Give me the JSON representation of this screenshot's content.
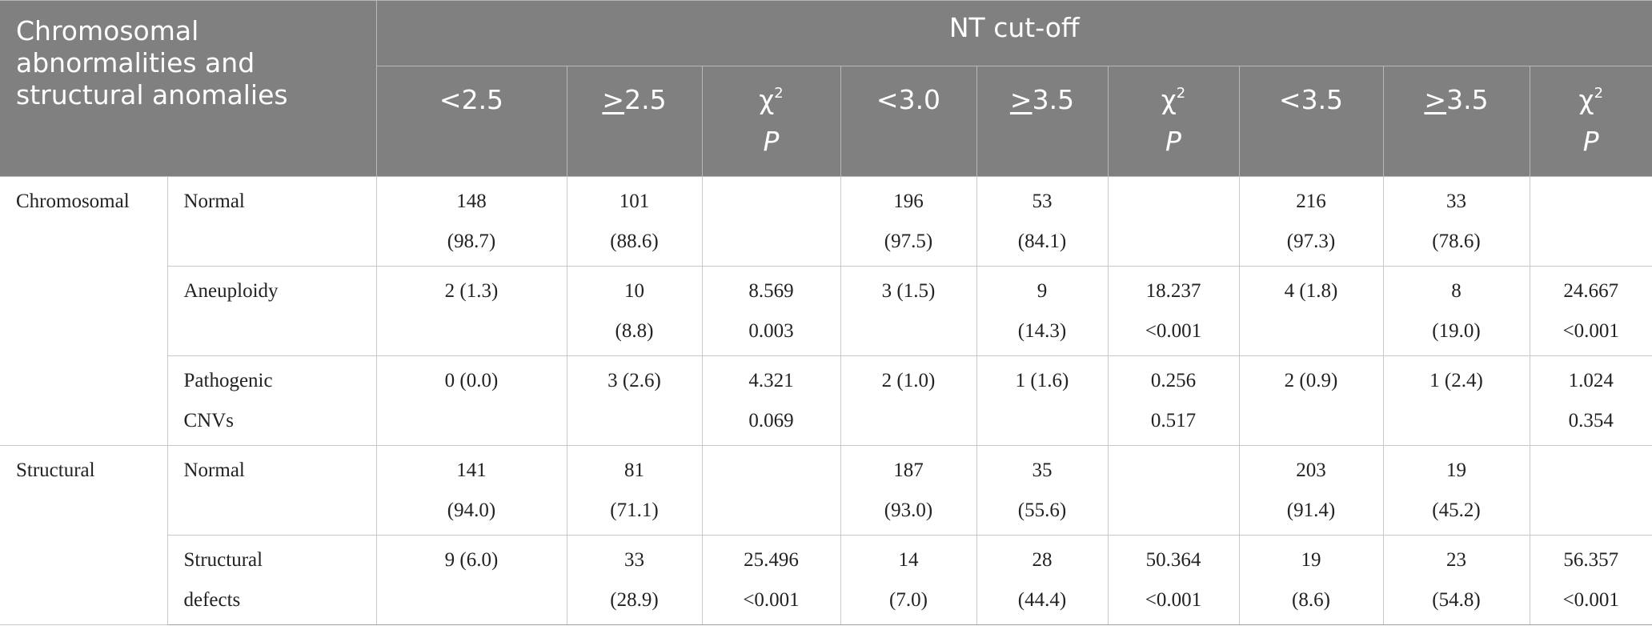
{
  "header": {
    "corner_label": "Chromosomal abnormalities and structural anomalies",
    "group_label": "NT cut-off",
    "groups": [
      {
        "low": "<2.5",
        "high": "2.5",
        "stat1": "χ",
        "stat_sup": "2",
        "stat2": "P"
      },
      {
        "low": "<3.0",
        "high": "3.5",
        "stat1": "χ",
        "stat_sup": "2",
        "stat2": "P"
      },
      {
        "low": "<3.5",
        "high": "3.5",
        "stat1": "χ",
        "stat_sup": "2",
        "stat2": "P"
      }
    ]
  },
  "sections": [
    {
      "category": "Chromosomal",
      "rows": [
        {
          "label": [
            "Normal"
          ],
          "cells": [
            [
              "148",
              "(98.7)"
            ],
            [
              "101",
              "(88.6)"
            ],
            [],
            [
              "196",
              "(97.5)"
            ],
            [
              "53",
              "(84.1)"
            ],
            [],
            [
              "216",
              "(97.3)"
            ],
            [
              "33",
              "(78.6)"
            ],
            []
          ]
        },
        {
          "label": [
            "Aneuploidy"
          ],
          "cells": [
            [
              "2 (1.3)"
            ],
            [
              "10",
              "(8.8)"
            ],
            [
              "8.569",
              "0.003"
            ],
            [
              "3 (1.5)"
            ],
            [
              "9",
              "(14.3)"
            ],
            [
              "18.237",
              "<0.001"
            ],
            [
              "4 (1.8)"
            ],
            [
              "8",
              "(19.0)"
            ],
            [
              "24.667",
              "<0.001"
            ]
          ]
        },
        {
          "label": [
            "Pathogenic",
            "CNVs"
          ],
          "cells": [
            [
              "0 (0.0)"
            ],
            [
              "3 (2.6)"
            ],
            [
              "4.321",
              "0.069"
            ],
            [
              "2 (1.0)"
            ],
            [
              "1 (1.6)"
            ],
            [
              "0.256",
              "0.517"
            ],
            [
              "2 (0.9)"
            ],
            [
              "1 (2.4)"
            ],
            [
              "1.024",
              "0.354"
            ]
          ]
        }
      ]
    },
    {
      "category": "Structural",
      "rows": [
        {
          "label": [
            "Normal"
          ],
          "cells": [
            [
              "141",
              "(94.0)"
            ],
            [
              "81",
              "(71.1)"
            ],
            [],
            [
              "187",
              "(93.0)"
            ],
            [
              "35",
              "(55.6)"
            ],
            [],
            [
              "203",
              "(91.4)"
            ],
            [
              "19",
              "(45.2)"
            ],
            []
          ]
        },
        {
          "label": [
            "Structural",
            "defects"
          ],
          "cells": [
            [
              "9 (6.0)"
            ],
            [
              "33",
              "(28.9)"
            ],
            [
              "25.496",
              "<0.001"
            ],
            [
              "14",
              "(7.0)"
            ],
            [
              "28",
              "(44.4)"
            ],
            [
              "50.364",
              "<0.001"
            ],
            [
              "19",
              "(8.6)"
            ],
            [
              "23",
              "(54.8)"
            ],
            [
              "56.357",
              "<0.001"
            ]
          ]
        }
      ]
    }
  ]
}
